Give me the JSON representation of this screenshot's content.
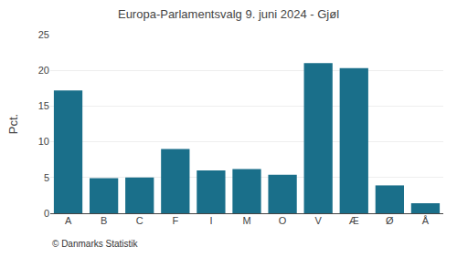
{
  "chart_data": {
    "type": "bar",
    "title": "Europa-Parlamentsvalg 9. juni 2024 - Gjøl",
    "categories": [
      "A",
      "B",
      "C",
      "F",
      "I",
      "M",
      "O",
      "V",
      "Æ",
      "Ø",
      "Å"
    ],
    "values": [
      17.2,
      4.9,
      5.0,
      9.0,
      6.0,
      6.2,
      5.4,
      21.0,
      20.3,
      3.9,
      1.4
    ],
    "color": "#1a6f8a",
    "ylabel": "Pct.",
    "ylim": [
      0,
      25
    ],
    "yticks": [
      0,
      5,
      10,
      15,
      20,
      25
    ],
    "grid": true,
    "annotations": [
      "© Danmarks Statistik"
    ]
  }
}
